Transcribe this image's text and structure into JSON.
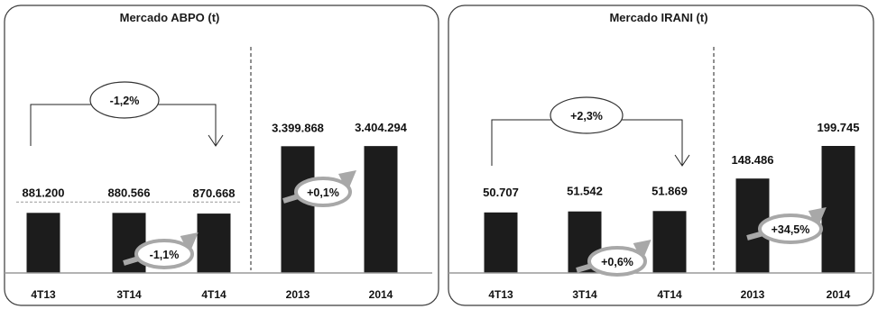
{
  "chart_data": [
    {
      "type": "bar",
      "title": "Mercado ABPO (t)",
      "categories": [
        "4T13",
        "3T14",
        "4T14",
        "2013",
        "2014"
      ],
      "values": [
        881.2,
        880.566,
        870.668,
        3399.868,
        3404.294
      ],
      "value_labels": [
        "881.200",
        "880.566",
        "870.668",
        "3.399.868",
        "3.404.294"
      ],
      "groups": [
        {
          "name": "quarterly",
          "indices": [
            0,
            1,
            2
          ],
          "ylim": [
            0,
            3500
          ]
        },
        {
          "name": "annual",
          "indices": [
            3,
            4
          ],
          "ylim": [
            0,
            5800
          ]
        }
      ],
      "annotations": {
        "bracket_change": "-1,2%",
        "quarter_change": "-1,1%",
        "year_change": "+0,1%"
      }
    },
    {
      "type": "bar",
      "title": "Mercado IRANI (t)",
      "categories": [
        "4T13",
        "3T14",
        "4T14",
        "2013",
        "2014"
      ],
      "values": [
        50.707,
        51.542,
        51.869,
        148.486,
        199.745
      ],
      "value_labels": [
        "50.707",
        "51.542",
        "51.869",
        "148.486",
        "199.745"
      ],
      "groups": [
        {
          "name": "quarterly",
          "indices": [
            0,
            1,
            2
          ],
          "ylim": [
            0,
            200
          ]
        },
        {
          "name": "annual",
          "indices": [
            3,
            4
          ],
          "ylim": [
            0,
            340
          ]
        }
      ],
      "annotations": {
        "bracket_change": "+2,3%",
        "quarter_change": "+0,6%",
        "year_change": "+34,5%"
      }
    }
  ],
  "colors": {
    "bar": "#1c1c1c",
    "arrow": "#a8a8a8",
    "frame": "#3a3a3a"
  }
}
